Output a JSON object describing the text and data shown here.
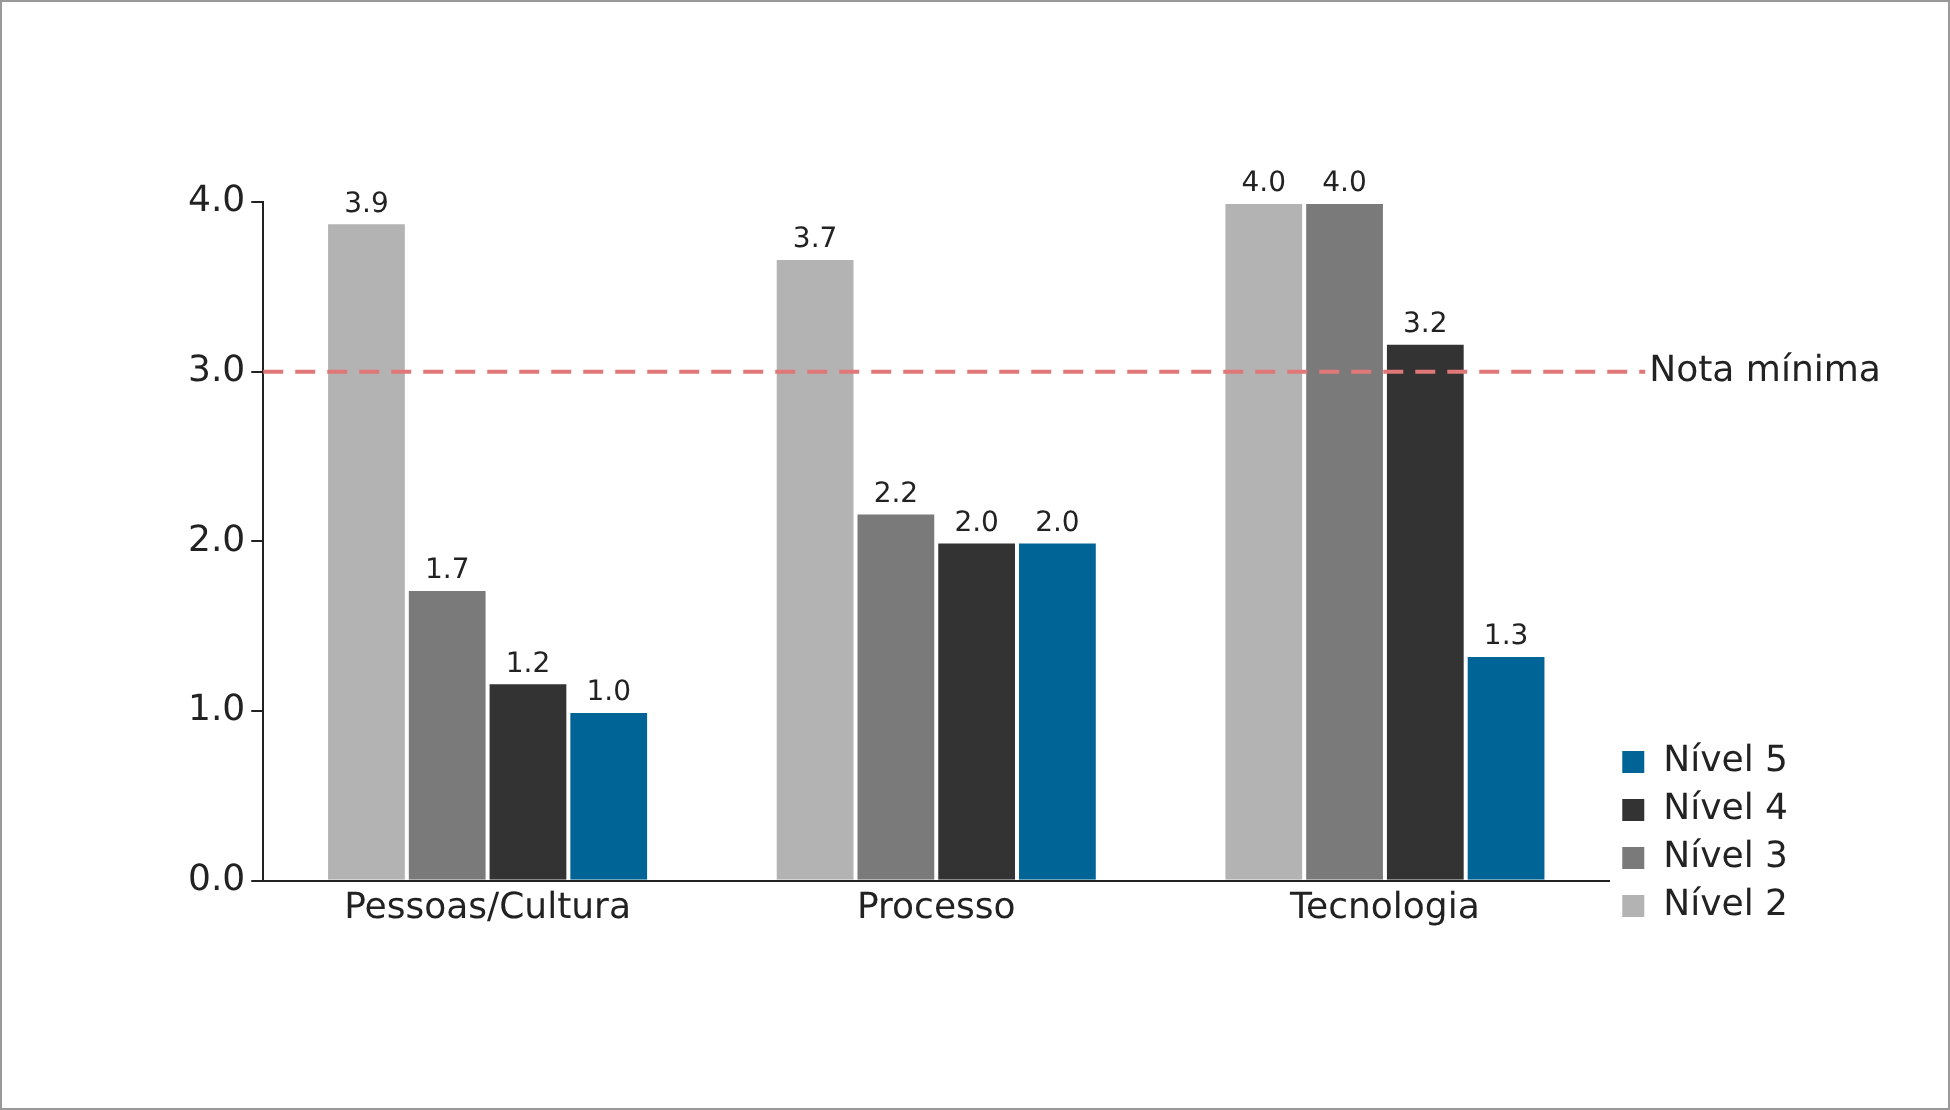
{
  "chart_data": {
    "type": "bar",
    "categories": [
      "Pessoas/Cultura",
      "Processo",
      "Tecnologia"
    ],
    "series": [
      {
        "name": "Nível 2",
        "color": "#b3b3b3",
        "values": [
          3.88,
          3.67,
          4.0
        ],
        "value_labels": [
          "3.9",
          "3.7",
          "4.0"
        ]
      },
      {
        "name": "Nível 3",
        "color": "#7a7a7a",
        "values": [
          1.72,
          2.17,
          4.0
        ],
        "value_labels": [
          "1.7",
          "2.2",
          "4.0"
        ]
      },
      {
        "name": "Nível 4",
        "color": "#333333",
        "values": [
          1.17,
          2.0,
          3.17
        ],
        "value_labels": [
          "1.2",
          "2.0",
          "3.2"
        ]
      },
      {
        "name": "Nível 5",
        "color": "#006496",
        "values": [
          1.0,
          2.0,
          1.33
        ],
        "value_labels": [
          "1.0",
          "2.0",
          "1.3"
        ]
      }
    ],
    "ylim": [
      0,
      4
    ],
    "yticks": [
      {
        "value": 0,
        "label": "0.0"
      },
      {
        "value": 1,
        "label": "1.0"
      },
      {
        "value": 2,
        "label": "2.0"
      },
      {
        "value": 3,
        "label": "3.0"
      },
      {
        "value": 4,
        "label": "4.0"
      }
    ],
    "ref_lines": [
      {
        "axis": "y",
        "value": 3,
        "label": "Nota mínima",
        "color": "#e07878",
        "line_style": "dashed"
      }
    ],
    "legend": "right",
    "grid": false
  }
}
